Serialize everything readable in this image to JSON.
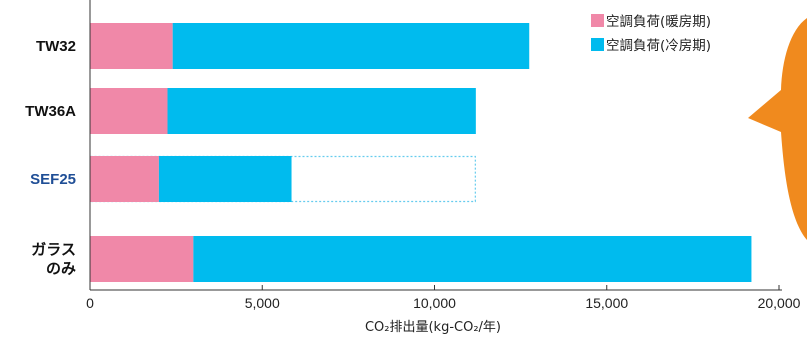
{
  "chart_data": {
    "type": "bar",
    "orientation": "horizontal",
    "stacked": true,
    "categories": [
      "TW32",
      "TW36A",
      "SEF25",
      "ガラス\nのみ"
    ],
    "highlight_category": "SEF25",
    "series": [
      {
        "name": "空調負荷(暖房期)",
        "values": [
          2400,
          2250,
          2000,
          3000
        ]
      },
      {
        "name": "空調負荷(冷房期)",
        "values": [
          10350,
          8950,
          3850,
          16200
        ]
      }
    ],
    "reference_outline": {
      "category": "SEF25",
      "value": 11200
    },
    "xlabel": "CO₂排出量(kg-CO₂/年)",
    "xlim": [
      0,
      20000
    ],
    "xticks": [
      "0",
      "5,000",
      "10,000",
      "15,000",
      "20,000"
    ],
    "xtick_values": [
      0,
      5000,
      10000,
      15000,
      20000
    ],
    "legend_position": "top-right",
    "grid": false
  },
  "colors": {
    "heating": "#F088A8",
    "cooling": "#00BBEE",
    "highlight_label": "#1F4E96",
    "label": "#111111",
    "axis": "#333333",
    "outline": "#66CCEE",
    "callout": "#F08A1E"
  }
}
